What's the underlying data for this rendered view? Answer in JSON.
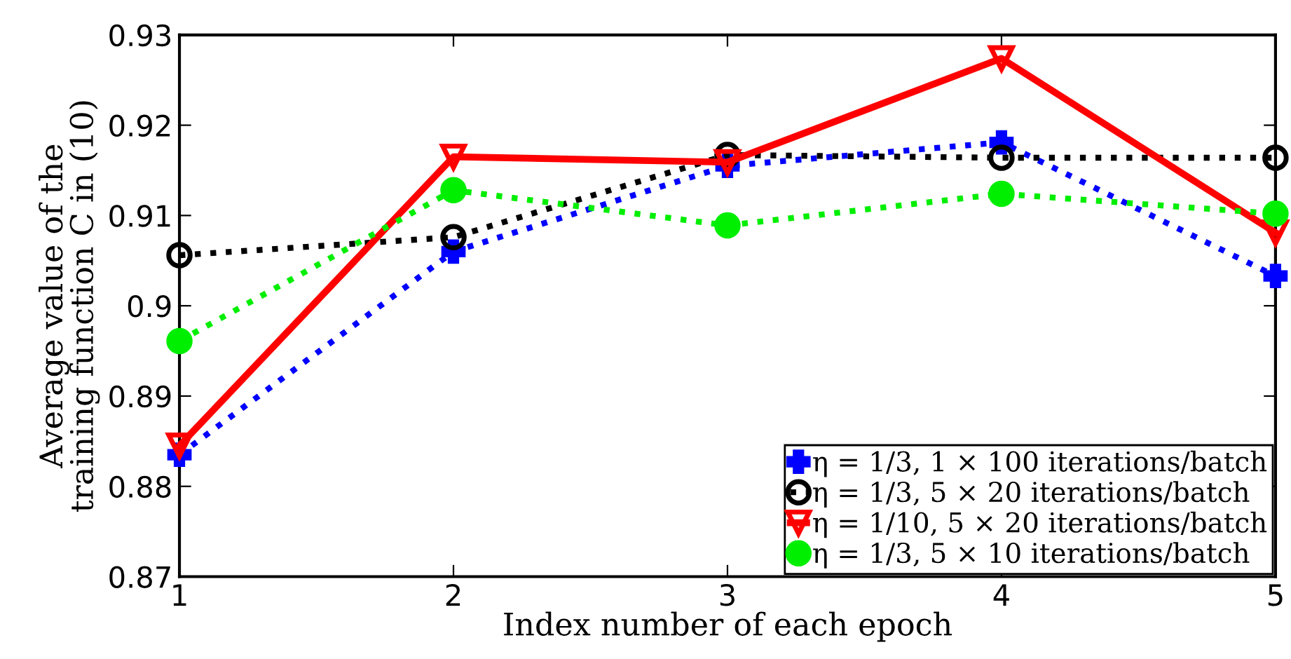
{
  "chart_data": {
    "type": "line",
    "xlabel": "Index number of each epoch",
    "ylabel": "Average value of the\ntraining function C in (10)",
    "x": [
      1,
      2,
      3,
      4,
      5
    ],
    "xlim": [
      1,
      5
    ],
    "xticks": [
      1,
      2,
      3,
      4,
      5
    ],
    "ylim": [
      0.87,
      0.93
    ],
    "yticks": [
      0.87,
      0.88,
      0.89,
      0.9,
      0.91,
      0.92,
      0.93
    ],
    "grid": false,
    "legend": "bottom right",
    "series": [
      {
        "name": "η = 1/3, 1 × 100 iterations/batch",
        "color": "#0000ff",
        "marker": "cross",
        "line_style": "dotted",
        "values": [
          0.8835,
          0.906,
          0.9155,
          0.9181,
          0.9033
        ]
      },
      {
        "name": "η = 1/3, 5 × 20 iterations/batch",
        "color": "#000000",
        "marker": "circle",
        "line_style": "dotted",
        "values": [
          0.9056,
          0.9076,
          0.9167,
          0.9164,
          0.9164
        ]
      },
      {
        "name": "η = 1/10, 5 × 20 iterations/batch",
        "color": "#ff0000",
        "marker": "triangle",
        "line_style": "solid",
        "values": [
          0.8845,
          0.9165,
          0.9159,
          0.9274,
          0.9081
        ]
      },
      {
        "name": "η = 1/3, 5 × 10 iterations/batch",
        "color": "#00ee00",
        "marker": "circle",
        "line_style": "dotted",
        "values": [
          0.8961,
          0.9128,
          0.9089,
          0.9124,
          0.9102
        ]
      }
    ]
  }
}
